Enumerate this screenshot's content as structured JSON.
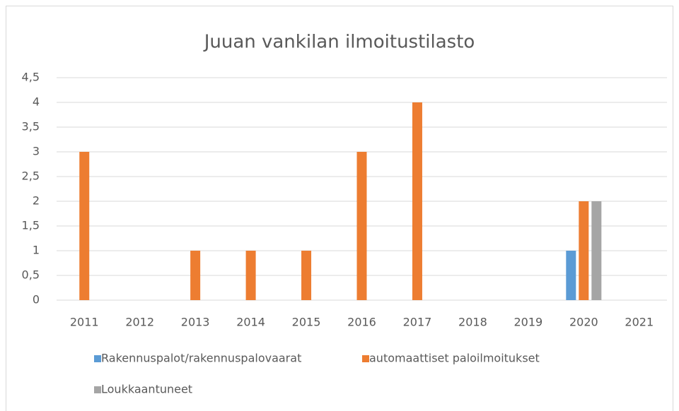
{
  "chart_data": {
    "type": "bar",
    "title": "Juuan vankilan ilmoitustilasto",
    "categories": [
      "2011",
      "2012",
      "2013",
      "2014",
      "2015",
      "2016",
      "2017",
      "2018",
      "2019",
      "2020",
      "2021"
    ],
    "series": [
      {
        "name": "Rakennuspalot/rakennuspalovaarat",
        "color": "#5b9bd5",
        "values": [
          0,
          0,
          0,
          0,
          0,
          0,
          0,
          0,
          0,
          1,
          0
        ]
      },
      {
        "name": "automaattiset paloilmoitukset",
        "color": "#ed7d31",
        "values": [
          3,
          0,
          1,
          1,
          1,
          3,
          4,
          0,
          0,
          2,
          0
        ]
      },
      {
        "name": "Loukkaantuneet",
        "color": "#a5a5a5",
        "values": [
          0,
          0,
          0,
          0,
          0,
          0,
          0,
          0,
          0,
          2,
          0
        ]
      }
    ],
    "ylim": [
      0,
      4.5
    ],
    "yticks": [
      0,
      {
        "value": 0.5,
        "label": "0,5"
      },
      1,
      {
        "value": 1.5,
        "label": "1,5"
      },
      2,
      {
        "value": 2.5,
        "label": "2,5"
      },
      3,
      {
        "value": 3.5,
        "label": "3,5"
      },
      4,
      {
        "value": 4.5,
        "label": "4,5"
      }
    ],
    "grid": true,
    "legend": "bottom"
  }
}
